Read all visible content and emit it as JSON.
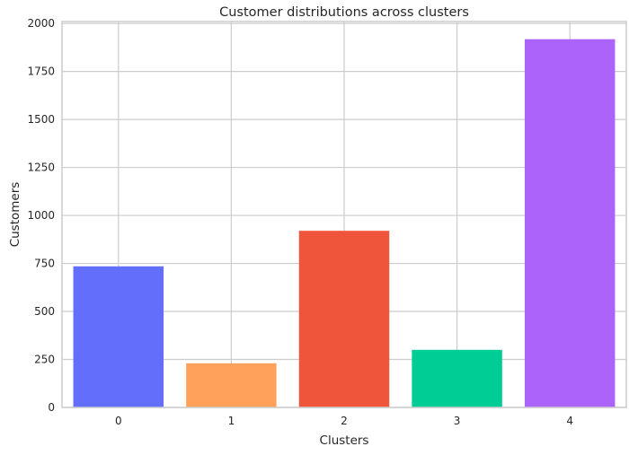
{
  "chart_data": {
    "type": "bar",
    "title": "Customer distributions across clusters",
    "xlabel": "Clusters",
    "ylabel": "Customers",
    "categories": [
      "0",
      "1",
      "2",
      "3",
      "4"
    ],
    "values": [
      735,
      230,
      920,
      300,
      1918
    ],
    "colors": [
      "#636efa",
      "#ffa15a",
      "#ef553b",
      "#00cc96",
      "#ab63fa"
    ],
    "ylim": [
      0,
      2010
    ],
    "yticks": [
      0,
      250,
      500,
      750,
      1000,
      1250,
      1500,
      1750,
      2000
    ],
    "grid": true
  }
}
